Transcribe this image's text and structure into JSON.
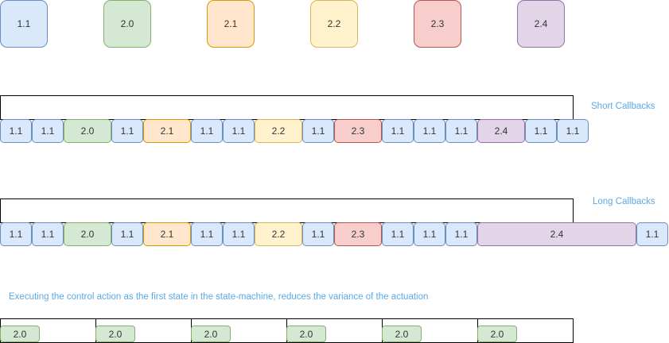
{
  "colors": {
    "1.1": {
      "fill": "#dae8fc",
      "stroke": "#6c8ebf"
    },
    "2.0": {
      "fill": "#d5e8d4",
      "stroke": "#82b366"
    },
    "2.1": {
      "fill": "#ffe6cc",
      "stroke": "#d79b00"
    },
    "2.2": {
      "fill": "#fff2cc",
      "stroke": "#d6b656"
    },
    "2.3": {
      "fill": "#f8cecc",
      "stroke": "#b85450"
    },
    "2.4": {
      "fill": "#e1d5e7",
      "stroke": "#9673a6"
    }
  },
  "legend": [
    "1.1",
    "2.0",
    "2.1",
    "2.2",
    "2.3",
    "2.4"
  ],
  "short": {
    "label": "Short Callbacks",
    "cells": [
      "1.1",
      "1.1",
      "2.0",
      "1.1",
      "2.1",
      "1.1",
      "1.1",
      "2.2",
      "1.1",
      "2.3",
      "1.1",
      "1.1",
      "1.1",
      "2.4",
      "1.1",
      "1.1"
    ]
  },
  "long": {
    "label": "Long Callbacks",
    "cells": [
      "1.1",
      "1.1",
      "2.0",
      "1.1",
      "2.1",
      "1.1",
      "1.1",
      "2.2",
      "1.1",
      "2.3",
      "1.1",
      "1.1",
      "1.1",
      "2.4",
      "1.1"
    ],
    "long_state": "2.4",
    "long_state_units": 5
  },
  "control": {
    "note": "Executing the control action as the first state in the state-machine, reduces the variance of the actuation",
    "cells": [
      "2.0",
      "2.0",
      "2.0",
      "2.0",
      "2.0",
      "2.0"
    ]
  }
}
